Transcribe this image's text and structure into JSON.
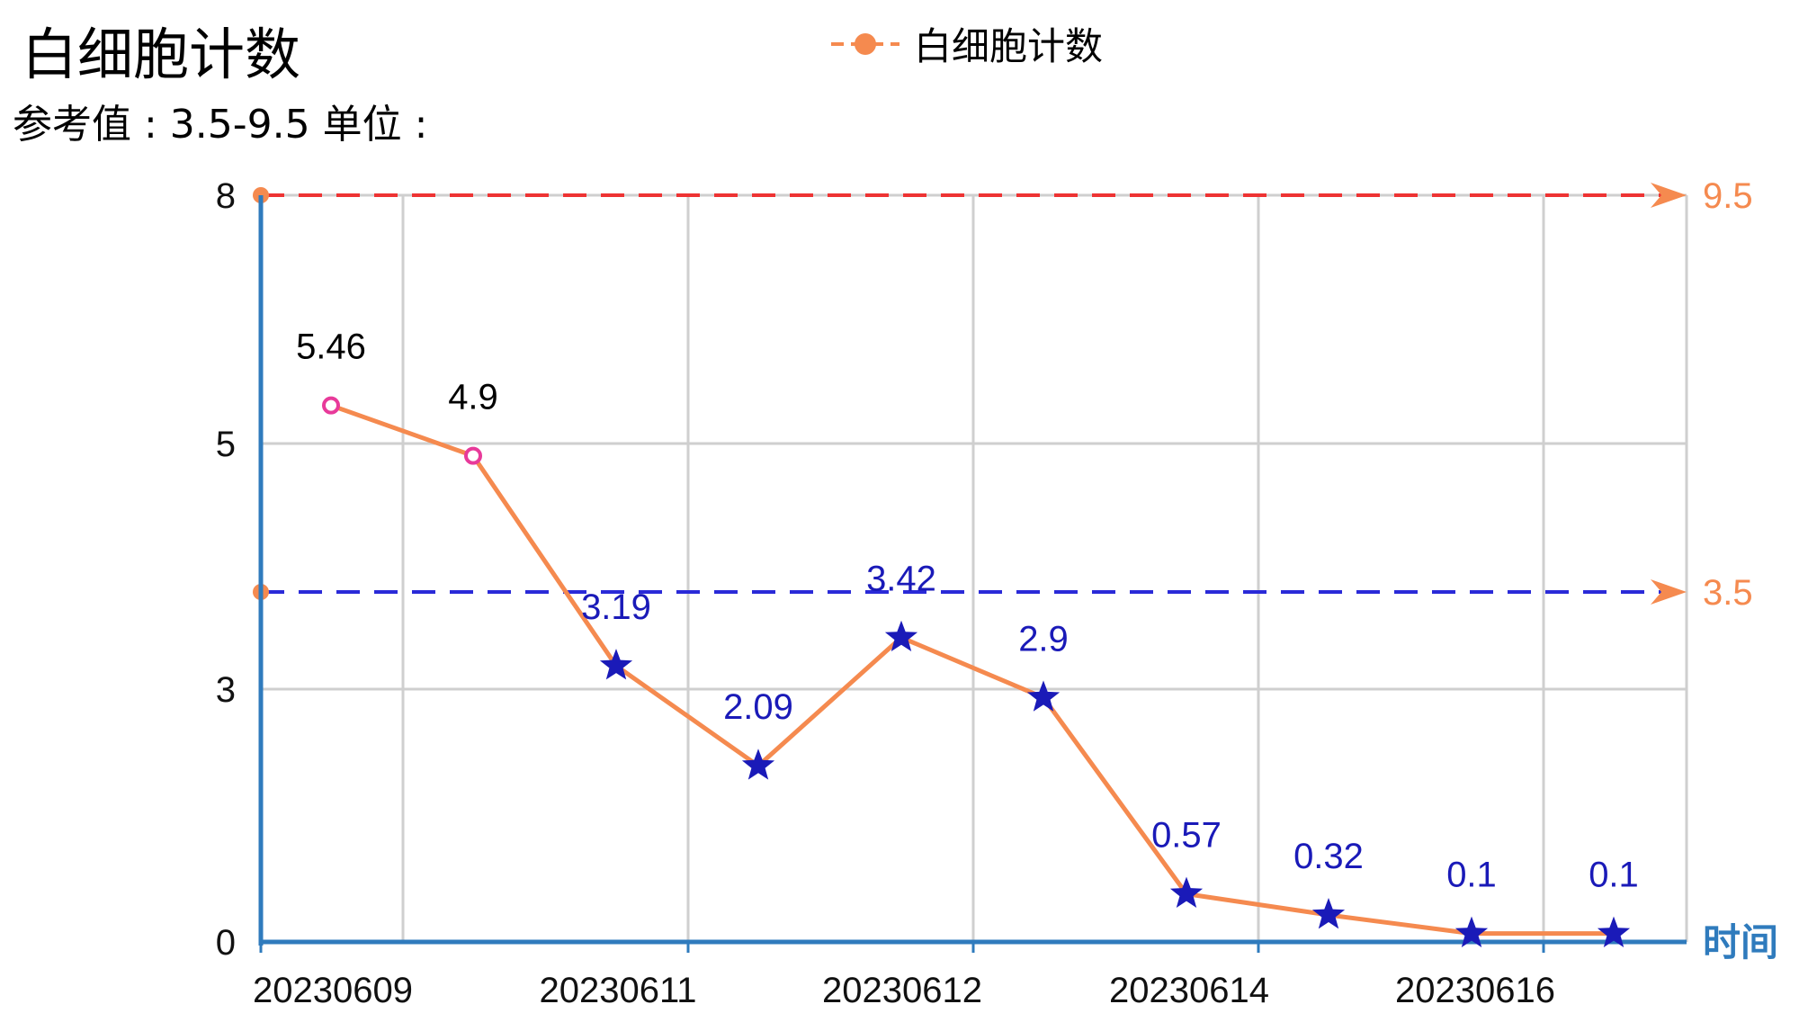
{
  "header": {
    "title": "白细胞计数",
    "subtitle": "参考值 : 3.5-9.5 单位 :"
  },
  "legend": {
    "label": "白细胞计数",
    "color": "#f58a4f",
    "marker": "circle"
  },
  "colors": {
    "line": "#f58a4f",
    "axis": "#2f7bbd",
    "grid": "#cfcfcf",
    "upper_ref": "#ee3333",
    "lower_ref": "#2a2ad8",
    "normal_label": "#000000",
    "abnormal_label": "#1a1ab8",
    "normal_point": "#e83a9a",
    "abnormal_point": "#1a1ab8",
    "ref_value": "#f58a4f"
  },
  "chart_data": {
    "type": "line",
    "title": "白细胞计数",
    "x_axis_name": "时间",
    "x_tick_labels": [
      "20230609",
      "20230611",
      "20230612",
      "20230614",
      "20230616"
    ],
    "y_tick_labels": [
      "0",
      "3",
      "5",
      "8"
    ],
    "series": [
      {
        "name": "白细胞计数",
        "values": [
          5.46,
          4.9,
          3.19,
          2.09,
          3.42,
          2.9,
          0.57,
          0.32,
          0.1,
          0.1
        ],
        "labels": [
          "5.46",
          "4.9",
          "3.19",
          "2.09",
          "3.42",
          "2.9",
          "0.57",
          "0.32",
          "0.1",
          "0.1"
        ],
        "markers": [
          "circle",
          "circle",
          "star",
          "star",
          "star",
          "star",
          "star",
          "star",
          "star",
          "star"
        ]
      }
    ],
    "reference_lines": [
      {
        "label": "9.5",
        "value": 9.5,
        "color": "#ee3333"
      },
      {
        "label": "3.5",
        "value": 3.5,
        "color": "#2a2ad8"
      }
    ],
    "grid": true,
    "legend_position": "top-center"
  }
}
